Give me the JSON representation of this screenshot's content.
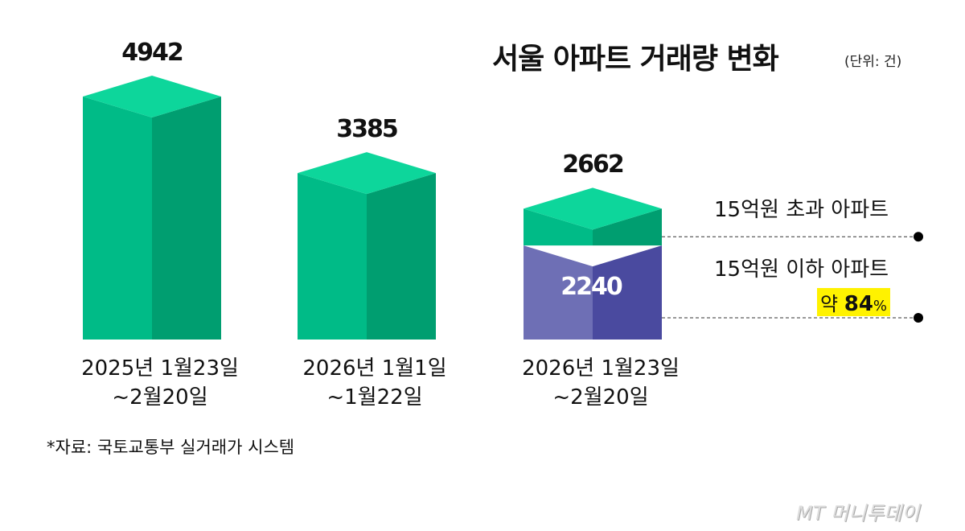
{
  "title": "서울 아파트 거래량 변화",
  "unit": "(단위: 건)",
  "source": "*자료: 국토교통부 실거래가 시스템",
  "logo": "MT 머니투데이",
  "colors": {
    "top": "#0dd69b",
    "left": "#00bb87",
    "right": "#009e70",
    "purple_left": "#6e6fb5",
    "purple_right": "#4a4a9f",
    "highlight": "#fff200"
  },
  "chart_data": {
    "type": "bar",
    "categories": [
      "2025년 1월23일\n~2월20일",
      "2026년 1월1일\n~1월22일",
      "2026년 1월23일\n~2월20일"
    ],
    "series": [
      {
        "values": [
          4942,
          3385,
          2662
        ]
      }
    ],
    "breakdown": {
      "category_index": 2,
      "total": 2662,
      "under_15": 2240
    },
    "legend": {
      "over": "15억원 초과 아파트",
      "under": "15억원 이하 아파트",
      "share_prefix": "약",
      "share_value": "84",
      "share_unit": "%"
    }
  }
}
